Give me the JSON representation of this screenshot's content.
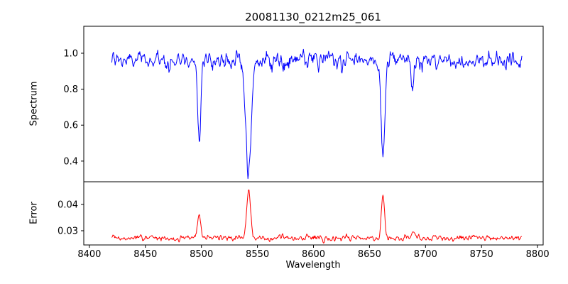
{
  "title": "20081130_0212m25_061",
  "xlabel": "Wavelength",
  "axes": {
    "xlim": [
      8395,
      8805
    ],
    "xticks": [
      "8400",
      "8450",
      "8500",
      "8550",
      "8600",
      "8650",
      "8700",
      "8750",
      "8800"
    ]
  },
  "chart_data": [
    {
      "type": "line",
      "name": "spectrum",
      "ylabel": "Spectrum",
      "color": "#0000ff",
      "ylim": [
        0.285,
        1.15
      ],
      "yticks": [
        "0.4",
        "0.6",
        "0.8",
        "1.0"
      ],
      "x_start": 8420,
      "x_end": 8786,
      "x_step": 0.5,
      "continuum": 0.96,
      "noise_sigma": 0.04,
      "absorption_lines": [
        {
          "center": 8498.0,
          "depth": 0.42,
          "width": 1.3
        },
        {
          "center": 8542.1,
          "depth": 0.6,
          "width": 2.5
        },
        {
          "center": 8662.1,
          "depth": 0.54,
          "width": 1.7
        },
        {
          "center": 8688.6,
          "depth": 0.16,
          "width": 1.2
        }
      ]
    },
    {
      "type": "line",
      "name": "error",
      "ylabel": "Error",
      "color": "#ff0000",
      "ylim": [
        0.0246,
        0.0486
      ],
      "yticks": [
        "0.03",
        "0.04"
      ],
      "x_start": 8420,
      "x_end": 8786,
      "x_step": 0.5,
      "baseline": 0.0272,
      "noise_sigma": 0.001,
      "peaks": [
        {
          "center": 8498.0,
          "height": 0.01,
          "width": 1.3
        },
        {
          "center": 8542.1,
          "height": 0.018,
          "width": 1.7
        },
        {
          "center": 8662.1,
          "height": 0.016,
          "width": 1.4
        },
        {
          "center": 8688.6,
          "height": 0.003,
          "width": 1.2
        }
      ]
    }
  ]
}
